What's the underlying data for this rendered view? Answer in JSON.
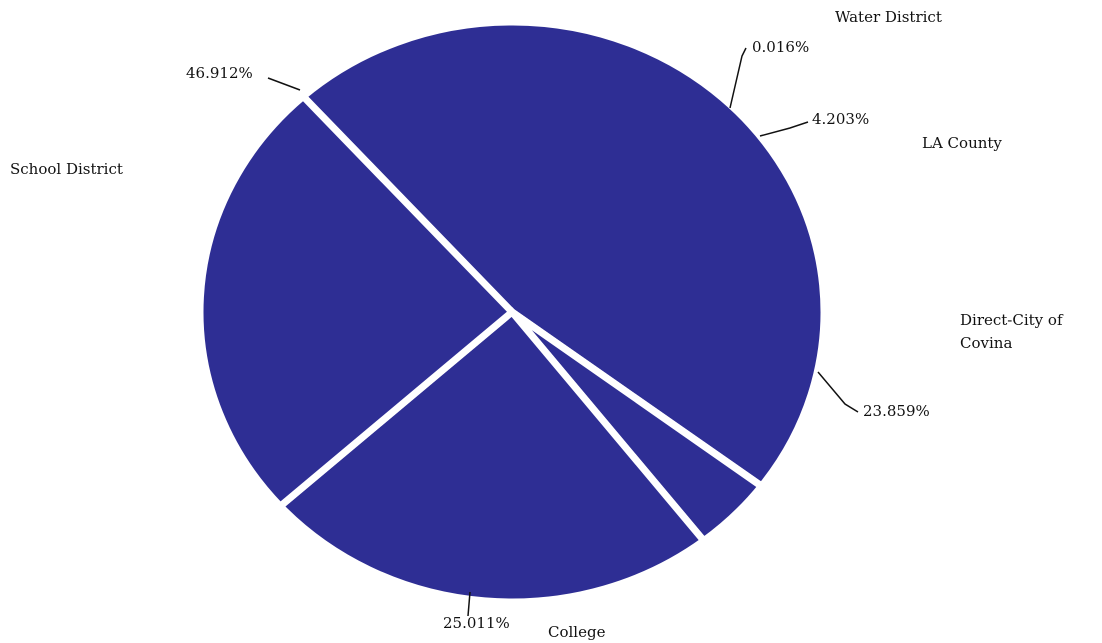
{
  "chart_data": {
    "type": "pie",
    "slice_color": "#2e2e94",
    "separator_color": "#ffffff",
    "slices": [
      {
        "key": "school",
        "label": "School District",
        "value": 46.912,
        "value_label": "46.912%"
      },
      {
        "key": "water",
        "label": "Water District",
        "value": 0.016,
        "value_label": "0.016%"
      },
      {
        "key": "county",
        "label": "LA County",
        "value": 4.203,
        "value_label": "4.203%"
      },
      {
        "key": "city",
        "label": "Direct-City of Covina",
        "value": 23.859,
        "value_label": "23.859%"
      },
      {
        "key": "college",
        "label": "College",
        "value": 25.011,
        "value_label": "25.011%"
      }
    ]
  }
}
